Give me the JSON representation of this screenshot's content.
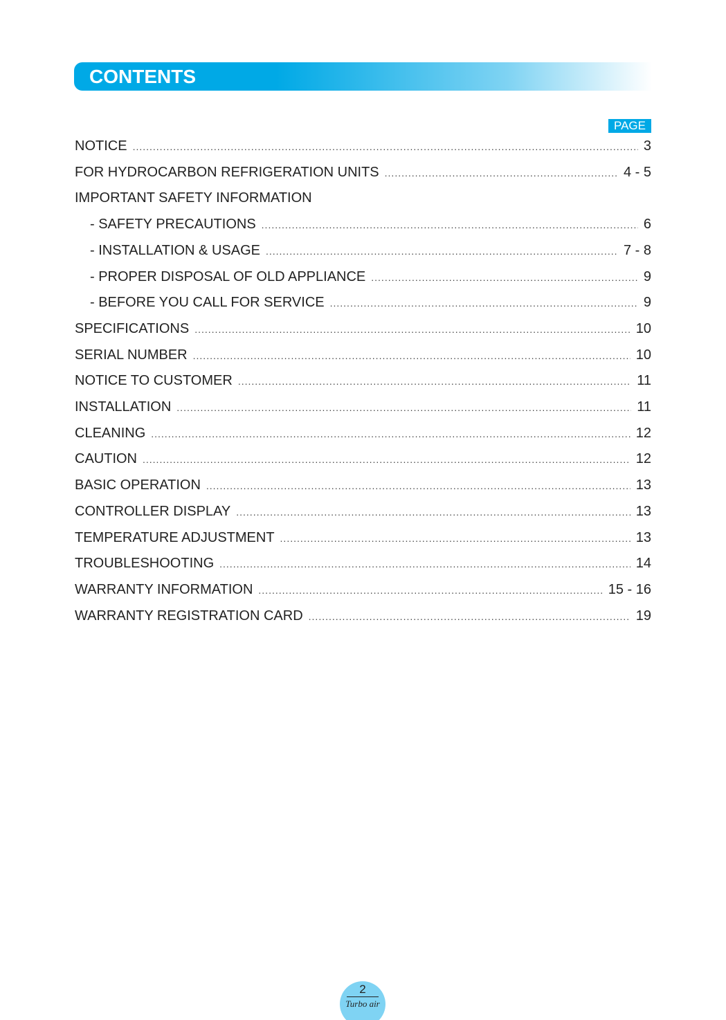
{
  "header": {
    "title": "CONTENTS",
    "page_label": "PAGE"
  },
  "entries": [
    {
      "title": "NOTICE",
      "page": "3",
      "indent": false
    },
    {
      "title": "FOR HYDROCARBON REFRIGERATION UNITS",
      "page": "4 - 5",
      "indent": false
    },
    {
      "title": "IMPORTANT SAFETY INFORMATION",
      "page": null,
      "indent": false
    },
    {
      "title": "- SAFETY PRECAUTIONS",
      "page": "6",
      "indent": true
    },
    {
      "title": "- INSTALLATION & USAGE",
      "page": "7 - 8",
      "indent": true
    },
    {
      "title": "- PROPER DISPOSAL OF OLD APPLIANCE",
      "page": "9",
      "indent": true
    },
    {
      "title": "- BEFORE YOU CALL FOR SERVICE",
      "page": "9",
      "indent": true
    },
    {
      "title": "SPECIFICATIONS",
      "page": "10",
      "indent": false
    },
    {
      "title": "SERIAL NUMBER",
      "page": "10",
      "indent": false
    },
    {
      "title": "NOTICE TO CUSTOMER",
      "page": "11",
      "indent": false
    },
    {
      "title": "INSTALLATION",
      "page": "11",
      "indent": false
    },
    {
      "title": "CLEANING",
      "page": "12",
      "indent": false
    },
    {
      "title": "CAUTION",
      "page": "12",
      "indent": false
    },
    {
      "title": "BASIC OPERATION",
      "page": "13",
      "indent": false
    },
    {
      "title": "CONTROLLER DISPLAY",
      "page": "13",
      "indent": false
    },
    {
      "title": "TEMPERATURE ADJUSTMENT",
      "page": "13",
      "indent": false
    },
    {
      "title": "TROUBLESHOOTING",
      "page": "14",
      "indent": false
    },
    {
      "title": "WARRANTY INFORMATION",
      "page": "15 - 16",
      "indent": false
    },
    {
      "title": "WARRANTY REGISTRATION CARD",
      "page": "19",
      "indent": false
    }
  ],
  "footer": {
    "page_number": "2",
    "brand": "Turbo air"
  }
}
